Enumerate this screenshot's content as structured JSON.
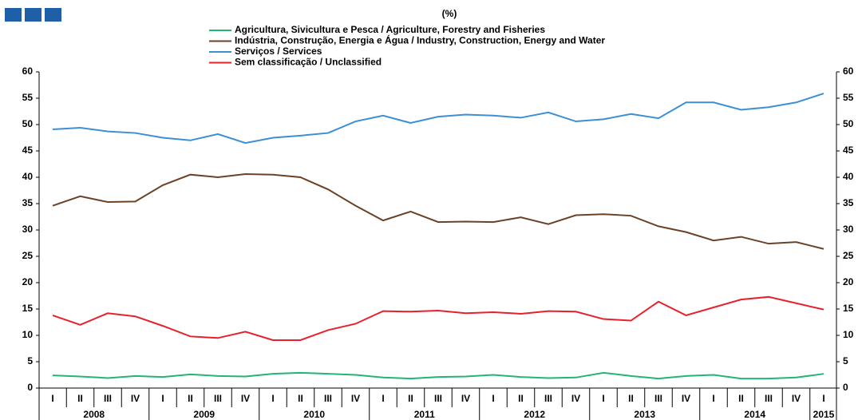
{
  "chart_data": {
    "type": "line",
    "title": "(%)",
    "categories": [
      "I",
      "II",
      "III",
      "IV",
      "I",
      "II",
      "III",
      "IV",
      "I",
      "II",
      "III",
      "IV",
      "I",
      "II",
      "III",
      "IV",
      "I",
      "II",
      "III",
      "IV",
      "I",
      "II",
      "III",
      "IV",
      "I",
      "II",
      "III",
      "IV",
      "I"
    ],
    "year_groups": [
      "2008",
      "2009",
      "2010",
      "2011",
      "2012",
      "2013",
      "2014",
      "2015"
    ],
    "series": [
      {
        "name": "Agricultura, Sivicultura e Pesca / Agriculture, Forestry and Fisheries",
        "color": "#22b573",
        "values": [
          2.4,
          2.2,
          1.9,
          2.3,
          2.1,
          2.6,
          2.3,
          2.2,
          2.7,
          2.9,
          2.7,
          2.5,
          2.0,
          1.8,
          2.1,
          2.2,
          2.5,
          2.1,
          1.9,
          2.0,
          2.9,
          2.3,
          1.8,
          2.3,
          2.5,
          1.8,
          1.8,
          2.0,
          2.7
        ]
      },
      {
        "name": "Indústria, Construção, Energia e Água / Industry, Construction, Energy and Water",
        "color": "#6b4226",
        "values": [
          34.6,
          36.4,
          35.3,
          35.4,
          38.5,
          40.5,
          40.0,
          40.6,
          40.5,
          40.0,
          37.7,
          34.6,
          31.8,
          33.5,
          31.5,
          31.6,
          31.5,
          32.4,
          31.1,
          32.8,
          33.0,
          32.7,
          30.7,
          29.6,
          28.0,
          28.7,
          27.4,
          27.7,
          26.4
        ]
      },
      {
        "name": "Serviços / Services",
        "color": "#3b8fd4",
        "values": [
          49.1,
          49.4,
          48.7,
          48.4,
          47.5,
          47.0,
          48.2,
          46.5,
          47.5,
          47.9,
          48.4,
          50.6,
          51.7,
          50.3,
          51.5,
          51.9,
          51.7,
          51.3,
          52.3,
          50.6,
          51.0,
          52.0,
          51.2,
          54.2,
          54.2,
          52.8,
          53.3,
          54.2,
          55.9
        ]
      },
      {
        "name": "Sem classificação / Unclassified",
        "color": "#e8202a",
        "values": [
          13.8,
          12.0,
          14.2,
          13.6,
          11.8,
          9.8,
          9.5,
          10.7,
          9.1,
          9.1,
          11.0,
          12.2,
          14.6,
          14.5,
          14.7,
          14.2,
          14.4,
          14.1,
          14.6,
          14.5,
          13.1,
          12.8,
          16.4,
          13.8,
          15.3,
          16.8,
          17.3,
          16.1,
          14.9
        ]
      }
    ],
    "ylim": [
      0,
      60
    ],
    "yticks": [
      0,
      5,
      10,
      15,
      20,
      25,
      30,
      35,
      40,
      45,
      50,
      55,
      60
    ],
    "y2lim": [
      0,
      60
    ],
    "y2ticks": [
      0,
      5,
      10,
      15,
      20,
      25,
      30,
      35,
      40,
      45,
      50,
      55,
      60
    ]
  }
}
